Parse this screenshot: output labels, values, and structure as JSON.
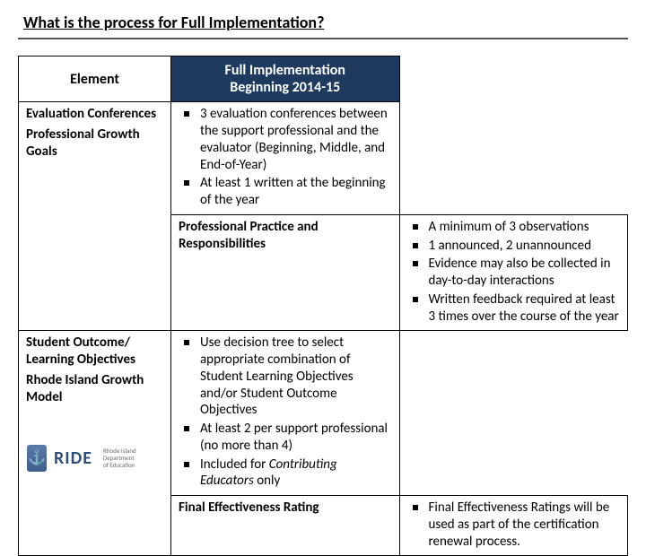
{
  "title": "What is the process for Full Implementation?",
  "header": {
    "element": "Element",
    "full_line1": "Full Implementation",
    "full_line2": "Beginning 2014-15"
  },
  "rows": [
    {
      "name": "Evaluation Conferences",
      "items": [
        "3 evaluation conferences between the support professional and the evaluator (Beginning, Middle, and End-of-Year)",
        "At least 1 written at the beginning of the year"
      ]
    },
    {
      "name": "Professional Growth Goals",
      "items": []
    },
    {
      "name": "Professional Practice and Responsibilities",
      "items": [
        "A minimum of 3 observations",
        "1 announced, 2 unannounced",
        "Evidence may also be collected in day-to-day interactions",
        "Written feedback required at least 3 times over the course of the year"
      ]
    },
    {
      "name": "Student Outcome/ Learning Objectives",
      "items": [
        "Use decision tree to select appropriate combination of Student Learning Objectives and/or Student Outcome Objectives",
        "At least 2 per support professional (no more than 4)"
      ]
    },
    {
      "name": "Rhode Island Growth Model",
      "items_html": "Included for <span class=\"italic\">Contributing Educators</span> only"
    },
    {
      "name": "Final Effectiveness Rating",
      "items": [
        "Final Effectiveness Ratings will be used as part of the certification renewal process."
      ]
    }
  ],
  "logo": {
    "brand": "RIDE",
    "sub1": "Rhode Island",
    "sub2": "Department",
    "sub3": "of Education"
  },
  "colors": {
    "header_bg": "#1f3a5f",
    "header_fg": "#ffffff",
    "border": "#000000",
    "title_rule": "#555555",
    "logo_blue": "#2f4f7a",
    "logo_gray": "#6b6b6b"
  },
  "fonts": {
    "title_pt": 18,
    "header_pt": 16,
    "body_pt": 15,
    "logo_big_pt": 20,
    "logo_small_pt": 7
  }
}
